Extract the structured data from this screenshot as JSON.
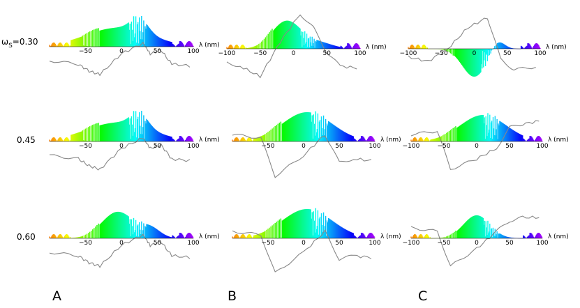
{
  "figure": {
    "row_labels": [
      "ω",
      "0.45",
      "0.60"
    ],
    "row0_prefix": "ω",
    "row0_sub": "S",
    "row0_value": "=0.30",
    "column_labels": [
      "A",
      "B",
      "C"
    ]
  },
  "chart_data": {
    "type": "area",
    "xlabel": "λ (nm)",
    "x_ticks": [
      -100,
      -50,
      0,
      50,
      100
    ],
    "xlim": [
      -100,
      100
    ],
    "colormap": "spectral rainbow (orange → yellow → green → cyan → blue → violet along λ)",
    "overlay_line_color": "#888888",
    "panels": [
      {
        "column": "A",
        "row": "0.30",
        "x_ticks_shown": [
          -50,
          0,
          50,
          100
        ]
      },
      {
        "column": "B",
        "row": "0.30",
        "x_ticks_shown": [
          -100,
          -50,
          0,
          50,
          100
        ]
      },
      {
        "column": "C",
        "row": "0.30",
        "x_ticks_shown": [
          -100,
          -50,
          0,
          50,
          100
        ]
      },
      {
        "column": "A",
        "row": "0.45",
        "x_ticks_shown": [
          -50,
          0,
          50,
          100
        ]
      },
      {
        "column": "B",
        "row": "0.45",
        "x_ticks_shown": [
          -50,
          0,
          50,
          100
        ]
      },
      {
        "column": "C",
        "row": "0.45",
        "x_ticks_shown": [
          -100,
          -50,
          0,
          50,
          100
        ]
      },
      {
        "column": "A",
        "row": "0.60",
        "x_ticks_shown": [
          -50,
          0,
          50,
          100
        ]
      },
      {
        "column": "B",
        "row": "0.60",
        "x_ticks_shown": [
          -50,
          0,
          50,
          100
        ]
      },
      {
        "column": "C",
        "row": "0.60",
        "x_ticks_shown": [
          -100,
          -50,
          0,
          50,
          100
        ]
      }
    ]
  }
}
